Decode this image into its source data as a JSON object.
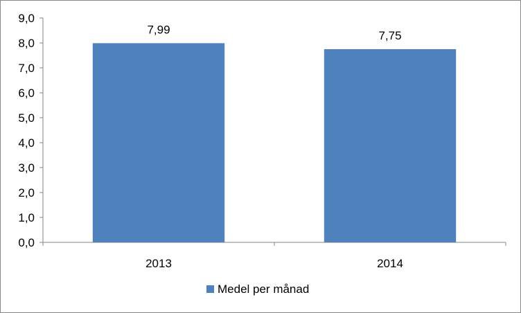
{
  "chart_data": {
    "type": "bar",
    "categories": [
      "2013",
      "2014"
    ],
    "series": [
      {
        "name": "Medel per månad",
        "values": [
          7.99,
          7.75
        ],
        "value_labels": [
          "7,99",
          "7,75"
        ],
        "color": "#4f81bd"
      }
    ],
    "ylim": [
      0,
      9
    ],
    "ytick_labels": [
      "0,0",
      "1,0",
      "2,0",
      "3,0",
      "4,0",
      "5,0",
      "6,0",
      "7,0",
      "8,0",
      "9,0"
    ],
    "xlabel": "",
    "ylabel": "",
    "grid": false,
    "legend_position": "bottom"
  }
}
